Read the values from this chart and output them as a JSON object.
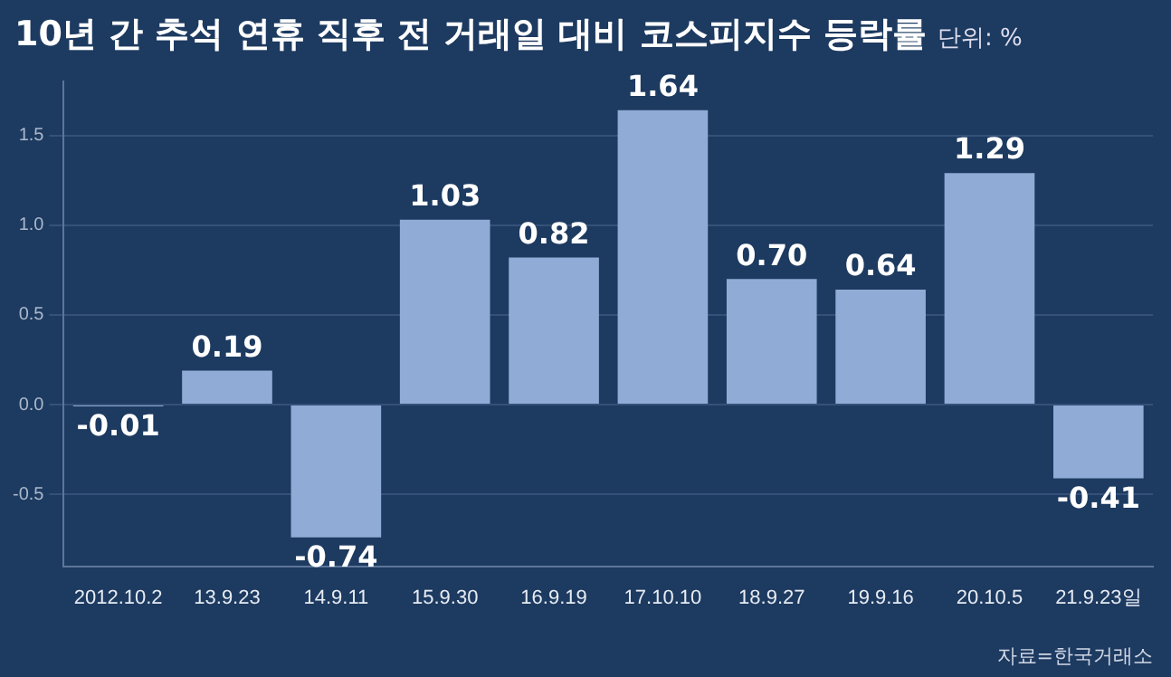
{
  "chart_data": {
    "type": "bar",
    "title": "10년 간 추석 연휴 직후 전 거래일 대비 코스피지수 등락률",
    "subtitle": "단위: %",
    "categories": [
      "2012.10.2",
      "13.9.23",
      "14.9.11",
      "15.9.30",
      "16.9.19",
      "17.10.10",
      "18.9.27",
      "19.9.16",
      "20.10.5",
      "21.9.23일"
    ],
    "values": [
      -0.01,
      0.19,
      -0.74,
      1.03,
      0.82,
      1.64,
      0.7,
      0.64,
      1.29,
      -0.41
    ],
    "color": "#8fabd6",
    "ylim": [
      -0.9,
      1.8
    ],
    "yticks": [
      {
        "value": -0.5,
        "label": "-0.5"
      },
      {
        "value": 0,
        "label": "0.0"
      },
      {
        "value": 0.5,
        "label": "0.5"
      },
      {
        "value": 1,
        "label": "1.0"
      },
      {
        "value": 1.5,
        "label": "1.5"
      }
    ],
    "value_labels": [
      "-0.01",
      "0.19",
      "-0.74",
      "1.03",
      "0.82",
      "1.64",
      "0.70",
      "0.64",
      "1.29",
      "-0.41"
    ],
    "grid": "y",
    "annotations": [
      "자료=한국거래소"
    ]
  }
}
